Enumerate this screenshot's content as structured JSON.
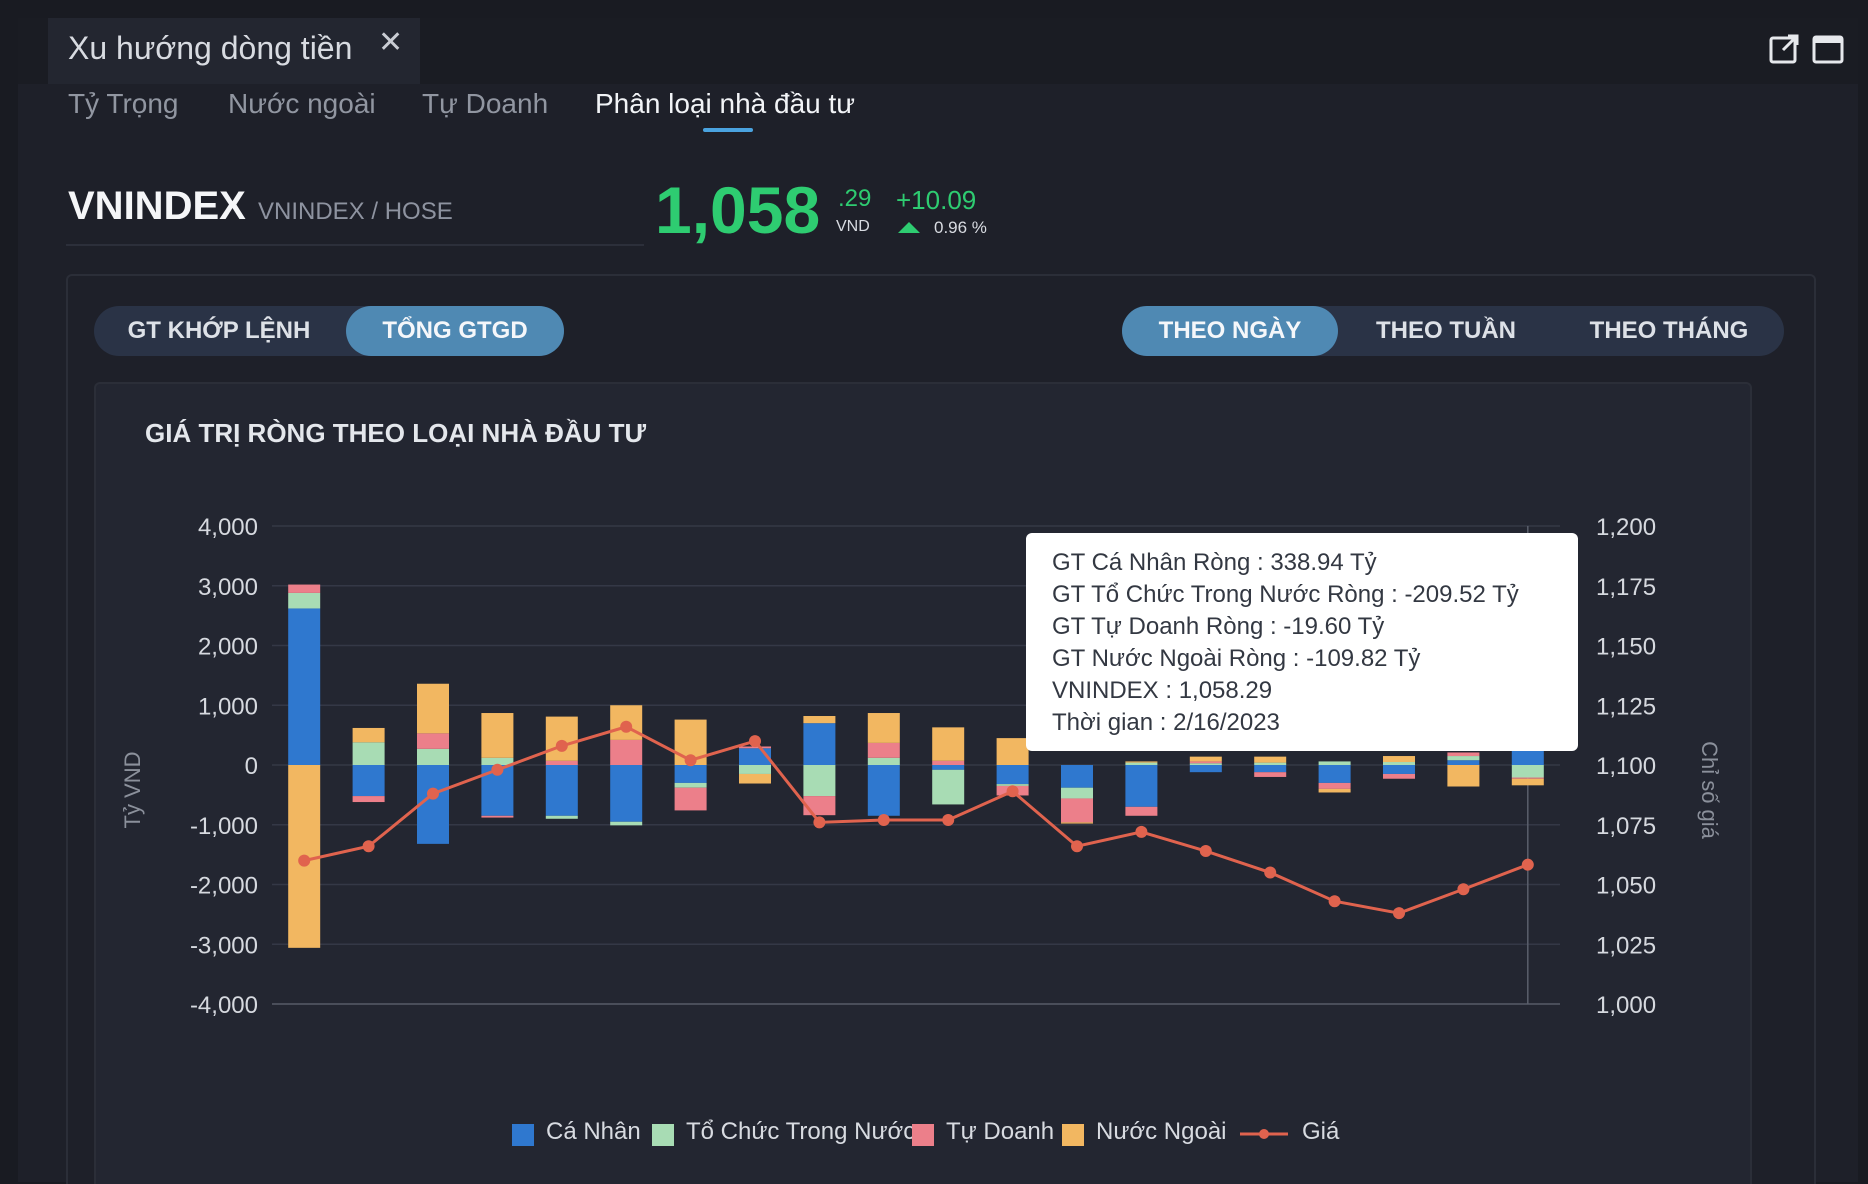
{
  "window": {
    "title": "Xu hướng dòng tiền",
    "icons": [
      "close-icon",
      "external-link-icon",
      "maximize-icon"
    ]
  },
  "subtabs": [
    {
      "label": "Tỷ Trọng",
      "active": false
    },
    {
      "label": "Nước ngoài",
      "active": false
    },
    {
      "label": "Tự Doanh",
      "active": false
    },
    {
      "label": "Phân loại nhà đầu tư",
      "active": true
    }
  ],
  "symbol": {
    "code": "VNINDEX",
    "exchange": "VNINDEX / HOSE",
    "price_int": "1,058",
    "price_dec": ".29",
    "unit": "VND",
    "change": "+10.09",
    "change_pct": "0.96 %"
  },
  "value_toggle": [
    {
      "label": "GT KHỚP LỆNH",
      "active": false
    },
    {
      "label": "TỔNG GTGD",
      "active": true
    }
  ],
  "period_toggle": [
    {
      "label": "THEO NGÀY",
      "active": true
    },
    {
      "label": "THEO TUẦN",
      "active": false
    },
    {
      "label": "THEO THÁNG",
      "active": false
    }
  ],
  "chart_title": "GIÁ TRỊ RÒNG THEO LOẠI NHÀ ĐẦU TƯ",
  "tooltip": {
    "lines": [
      "GT Cá Nhân Ròng  : 338.94 Tỷ",
      "GT Tổ Chức Trong Nước Ròng : -209.52 Tỷ",
      "GT Tự Doanh Ròng : -19.60 Tỷ",
      "GT Nước Ngoài Ròng : -109.82 Tỷ",
      "VNINDEX : 1,058.29",
      "Thời gian : 2/16/2023"
    ]
  },
  "colors": {
    "ca_nhan": "#2f78cf",
    "to_chuc": "#a8dcb4",
    "tu_doanh": "#ec7f8a",
    "nuoc_ngoai": "#f2b761",
    "price_line": "#e0634e",
    "up": "#2ecc71"
  },
  "chart_data": {
    "type": "bar",
    "stacked": true,
    "left_axis": {
      "label": "Tỷ VND",
      "min": -4000,
      "max": 4000,
      "ticks": [
        "4,000",
        "3,000",
        "2,000",
        "1,000",
        "0",
        "-1,000",
        "-2,000",
        "-3,000",
        "-4,000"
      ]
    },
    "right_axis": {
      "label": "Chỉ số giá",
      "min": 1000,
      "max": 1200,
      "ticks": [
        "1,200",
        "1,175",
        "1,150",
        "1,125",
        "1,100",
        "1,075",
        "1,050",
        "1,025",
        "1,000"
      ]
    },
    "series": [
      {
        "name": "Cá Nhân",
        "values": [
          2620,
          -520,
          -1320,
          -850,
          -850,
          -950,
          -300,
          280,
          700,
          -850,
          -80,
          -320,
          -380,
          -700,
          -120,
          -120,
          -300,
          -150,
          80,
          339
        ]
      },
      {
        "name": "Tổ Chức Trong Nước",
        "values": [
          260,
          380,
          270,
          120,
          -50,
          -60,
          -80,
          -150,
          -520,
          120,
          -580,
          -30,
          -180,
          40,
          30,
          40,
          60,
          50,
          70,
          -210
        ]
      },
      {
        "name": "Tự Doanh",
        "values": [
          140,
          -100,
          260,
          -30,
          70,
          420,
          -380,
          30,
          -320,
          250,
          70,
          -160,
          -400,
          -150,
          30,
          -80,
          -100,
          -80,
          60,
          -20
        ]
      },
      {
        "name": "Nước Ngoài",
        "values": [
          -3060,
          240,
          830,
          750,
          740,
          580,
          760,
          -160,
          120,
          500,
          560,
          450,
          -20,
          20,
          80,
          100,
          -60,
          100,
          -360,
          -110
        ]
      },
      {
        "name": "Giá",
        "values": [
          1060,
          1066,
          1088,
          1098,
          1108,
          1116,
          1102,
          1110,
          1076,
          1077,
          1077,
          1089,
          1066,
          1072,
          1064,
          1055,
          1043,
          1038,
          1048,
          1058.29
        ]
      }
    ],
    "legend": [
      "Cá Nhân",
      "Tổ Chức Trong Nước",
      "Tự Doanh",
      "Nước Ngoài",
      "Giá"
    ],
    "legend_position": "bottom",
    "grid": true
  }
}
